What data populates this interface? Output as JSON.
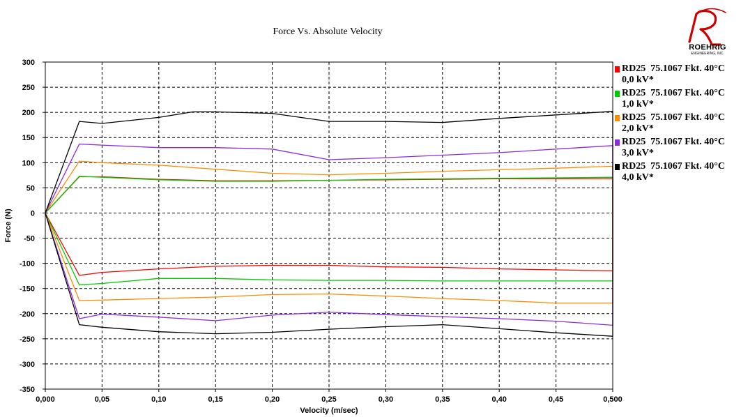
{
  "chart_data": {
    "type": "line",
    "title": "Force Vs. Absolute Velocity",
    "xlabel": "Velocity (m/sec)",
    "ylabel": "Force (N)",
    "xlim": [
      0,
      0.5
    ],
    "ylim": [
      -350,
      300
    ],
    "x_ticks": [
      "0,000",
      "0,05",
      "0,10",
      "0,15",
      "0,20",
      "0,25",
      "0,30",
      "0,35",
      "0,40",
      "0,45",
      "0,500"
    ],
    "y_ticks": [
      "300",
      "250",
      "200",
      "150",
      "100",
      "50",
      "0",
      "-50",
      "-100",
      "-150",
      "-200",
      "-250",
      "-300",
      "-350"
    ],
    "grid": true,
    "legend_position": "right",
    "series": [
      {
        "name": "RD25  75.1067 Fkt. 40°C\n0,0 kV*",
        "color": "#ff0000",
        "points": [
          [
            0,
            0
          ],
          [
            0.03,
            72
          ],
          [
            0.05,
            72
          ],
          [
            0.1,
            67
          ],
          [
            0.15,
            64
          ],
          [
            0.2,
            64
          ],
          [
            0.25,
            65
          ],
          [
            0.3,
            66
          ],
          [
            0.35,
            67
          ],
          [
            0.4,
            68
          ],
          [
            0.45,
            68
          ],
          [
            0.5,
            68
          ],
          [
            0.5,
            -115
          ],
          [
            0.45,
            -113
          ],
          [
            0.4,
            -111
          ],
          [
            0.35,
            -108
          ],
          [
            0.3,
            -107
          ],
          [
            0.25,
            -104
          ],
          [
            0.2,
            -104
          ],
          [
            0.15,
            -106
          ],
          [
            0.1,
            -111
          ],
          [
            0.05,
            -118
          ],
          [
            0.03,
            -124
          ],
          [
            0,
            0
          ]
        ]
      },
      {
        "name": "RD25  75.1067 Fkt. 40°C\n1,0 kV*",
        "color": "#00cc00",
        "points": [
          [
            0,
            0
          ],
          [
            0.03,
            73
          ],
          [
            0.05,
            71
          ],
          [
            0.1,
            66
          ],
          [
            0.15,
            63
          ],
          [
            0.2,
            63
          ],
          [
            0.25,
            65
          ],
          [
            0.3,
            67
          ],
          [
            0.35,
            68
          ],
          [
            0.4,
            69
          ],
          [
            0.45,
            70
          ],
          [
            0.5,
            71
          ],
          [
            0.5,
            -135
          ],
          [
            0.45,
            -135
          ],
          [
            0.4,
            -135
          ],
          [
            0.35,
            -135
          ],
          [
            0.3,
            -134
          ],
          [
            0.25,
            -134
          ],
          [
            0.2,
            -133
          ],
          [
            0.15,
            -130
          ],
          [
            0.1,
            -130
          ],
          [
            0.05,
            -140
          ],
          [
            0.03,
            -143
          ],
          [
            0,
            0
          ]
        ]
      },
      {
        "name": "RD25  75.1067 Fkt. 40°C\n2,0 kV*",
        "color": "#ff8c00",
        "points": [
          [
            0,
            0
          ],
          [
            0.03,
            103
          ],
          [
            0.05,
            100
          ],
          [
            0.1,
            95
          ],
          [
            0.15,
            87
          ],
          [
            0.2,
            79
          ],
          [
            0.25,
            76
          ],
          [
            0.3,
            79
          ],
          [
            0.35,
            83
          ],
          [
            0.4,
            86
          ],
          [
            0.45,
            89
          ],
          [
            0.5,
            93
          ],
          [
            0.5,
            -179
          ],
          [
            0.45,
            -179
          ],
          [
            0.4,
            -174
          ],
          [
            0.35,
            -170
          ],
          [
            0.3,
            -165
          ],
          [
            0.25,
            -161
          ],
          [
            0.2,
            -162
          ],
          [
            0.15,
            -167
          ],
          [
            0.1,
            -170
          ],
          [
            0.05,
            -173
          ],
          [
            0.03,
            -174
          ],
          [
            0,
            0
          ]
        ]
      },
      {
        "name": "RD25  75.1067 Fkt. 40°C\n3,0 kV*",
        "color": "#8a2be2",
        "points": [
          [
            0,
            0
          ],
          [
            0.03,
            137
          ],
          [
            0.05,
            135
          ],
          [
            0.1,
            130
          ],
          [
            0.15,
            130
          ],
          [
            0.2,
            127
          ],
          [
            0.25,
            106
          ],
          [
            0.3,
            110
          ],
          [
            0.35,
            115
          ],
          [
            0.4,
            120
          ],
          [
            0.45,
            127
          ],
          [
            0.5,
            134
          ],
          [
            0.5,
            -223
          ],
          [
            0.45,
            -215
          ],
          [
            0.4,
            -210
          ],
          [
            0.35,
            -206
          ],
          [
            0.3,
            -202
          ],
          [
            0.25,
            -197
          ],
          [
            0.2,
            -203
          ],
          [
            0.15,
            -214
          ],
          [
            0.1,
            -207
          ],
          [
            0.05,
            -201
          ],
          [
            0.03,
            -210
          ],
          [
            0,
            0
          ]
        ]
      },
      {
        "name": "RD25  75.1067 Fkt. 40°C\n4,0 kV*",
        "color": "#000000",
        "points": [
          [
            0,
            0
          ],
          [
            0.03,
            182
          ],
          [
            0.05,
            178
          ],
          [
            0.1,
            190
          ],
          [
            0.13,
            201
          ],
          [
            0.15,
            201
          ],
          [
            0.2,
            198
          ],
          [
            0.25,
            182
          ],
          [
            0.3,
            182
          ],
          [
            0.35,
            180
          ],
          [
            0.4,
            188
          ],
          [
            0.45,
            195
          ],
          [
            0.5,
            202
          ],
          [
            0.5,
            -245
          ],
          [
            0.45,
            -238
          ],
          [
            0.4,
            -230
          ],
          [
            0.35,
            -222
          ],
          [
            0.3,
            -226
          ],
          [
            0.25,
            -231
          ],
          [
            0.2,
            -237
          ],
          [
            0.15,
            -240
          ],
          [
            0.1,
            -236
          ],
          [
            0.05,
            -227
          ],
          [
            0.03,
            -222
          ],
          [
            0,
            0
          ]
        ]
      }
    ]
  },
  "logo": {
    "text": "ROEHRIG",
    "subtext": "ENGINEERING, INC."
  }
}
